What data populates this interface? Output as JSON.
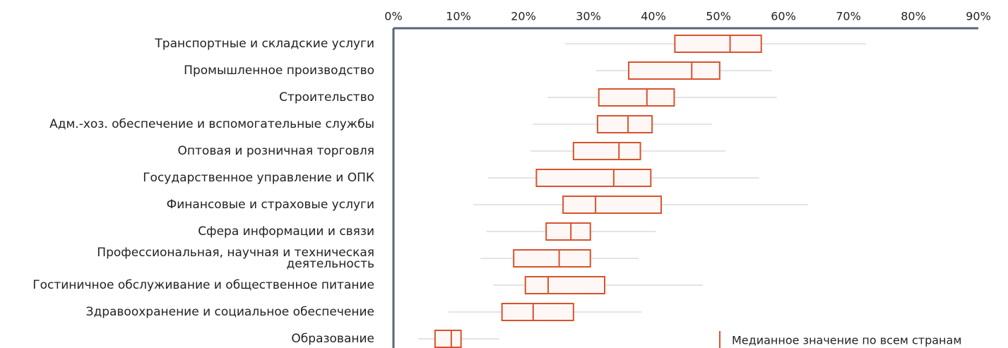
{
  "chart_data": {
    "type": "box",
    "orientation": "horizontal",
    "categories": [
      "Транспортные и складские услуги",
      "Промышленное производство",
      "Строительство",
      "Адм.-хоз. обеспечение и вспомогательные службы",
      "Оптовая и розничная торговля",
      "Государственное управление и ОПК",
      "Финансовые и страховые услуги",
      "Сфера информации и связи",
      "Профессиональная, научная и техническая деятельность",
      "Гостиничное обслуживание и общественное питание",
      "Здравоохранение и социальное обеспечение",
      "Образование"
    ],
    "boxes": [
      {
        "min": 26.4,
        "q1": 43.3,
        "median": 51.8,
        "q3": 56.6,
        "max": 72.7
      },
      {
        "min": 31.2,
        "q1": 36.2,
        "median": 45.9,
        "q3": 50.2,
        "max": 58.2
      },
      {
        "min": 23.7,
        "q1": 31.6,
        "median": 39.0,
        "q3": 43.2,
        "max": 59.0
      },
      {
        "min": 21.5,
        "q1": 31.4,
        "median": 36.1,
        "q3": 39.8,
        "max": 49.0
      },
      {
        "min": 21.1,
        "q1": 27.7,
        "median": 34.7,
        "q3": 38.0,
        "max": 51.1
      },
      {
        "min": 14.5,
        "q1": 22.0,
        "median": 33.9,
        "q3": 39.6,
        "max": 56.3
      },
      {
        "min": 12.3,
        "q1": 26.1,
        "median": 31.1,
        "q3": 41.2,
        "max": 63.8
      },
      {
        "min": 14.3,
        "q1": 23.5,
        "median": 27.3,
        "q3": 30.3,
        "max": 40.4
      },
      {
        "min": 13.4,
        "q1": 18.5,
        "median": 25.5,
        "q3": 30.3,
        "max": 37.8
      },
      {
        "min": 15.3,
        "q1": 20.3,
        "median": 23.8,
        "q3": 32.5,
        "max": 47.6
      },
      {
        "min": 8.5,
        "q1": 16.7,
        "median": 21.5,
        "q3": 27.7,
        "max": 38.2
      },
      {
        "min": 3.8,
        "q1": 6.4,
        "median": 8.9,
        "q3": 10.4,
        "max": 16.3
      }
    ],
    "color": "#d9532c",
    "whisker_color": "#dcdcdc",
    "box_fill": "#fdf8f6",
    "xlim": [
      0,
      90
    ],
    "xticks": [
      {
        "value": 0,
        "label": "0%"
      },
      {
        "value": 10,
        "label": "10%"
      },
      {
        "value": 20,
        "label": "20%"
      },
      {
        "value": 30,
        "label": "30%"
      },
      {
        "value": 40,
        "label": "40%"
      },
      {
        "value": 50,
        "label": "50%"
      },
      {
        "value": 60,
        "label": "60%"
      },
      {
        "value": 70,
        "label": "70%"
      },
      {
        "value": 80,
        "label": "80%"
      },
      {
        "value": 90,
        "label": "90%"
      }
    ],
    "legend_label": "Медианное значение по всем странам"
  }
}
